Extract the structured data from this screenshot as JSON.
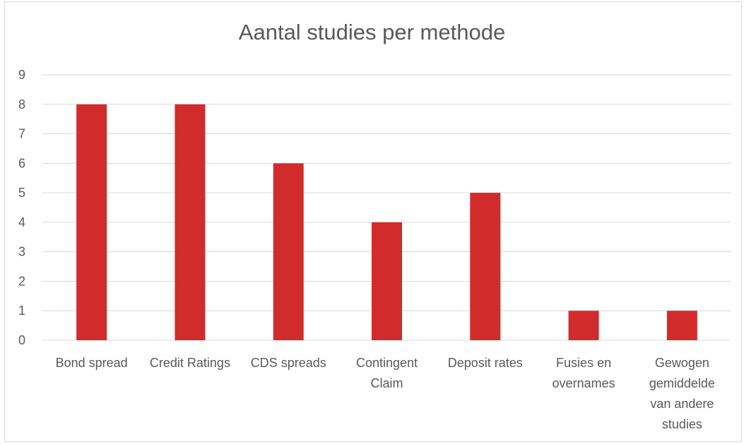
{
  "chart_data": {
    "type": "bar",
    "title": "Aantal studies per methode",
    "xlabel": "",
    "ylabel": "",
    "categories": [
      "Bond spread",
      "Credit Ratings",
      "CDS spreads",
      "Contingent Claim",
      "Deposit rates",
      "Fusies en overnames",
      "Gewogen gemiddelde van andere studies"
    ],
    "category_label_lines": [
      [
        "Bond spread"
      ],
      [
        "Credit Ratings"
      ],
      [
        "CDS spreads"
      ],
      [
        "Contingent",
        "Claim"
      ],
      [
        "Deposit rates"
      ],
      [
        "Fusies en",
        "overnames"
      ],
      [
        "Gewogen",
        "gemiddelde",
        "van andere",
        "studies"
      ]
    ],
    "values": [
      8,
      8,
      6,
      4,
      5,
      1,
      1
    ],
    "ylim": [
      0,
      9
    ],
    "yticks": [
      0,
      1,
      2,
      3,
      4,
      5,
      6,
      7,
      8,
      9
    ],
    "grid": true,
    "legend": "none",
    "bar_color": "#d22b2b",
    "grid_color": "#d9d9d9",
    "text_color": "#595959"
  }
}
